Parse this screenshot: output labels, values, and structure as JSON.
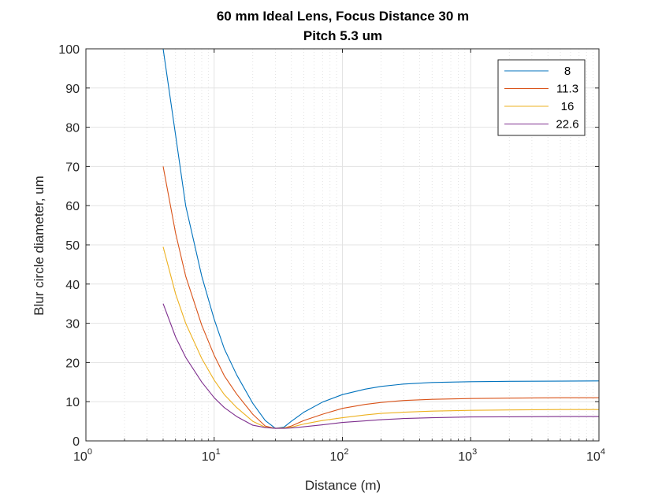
{
  "chart_data": {
    "type": "line",
    "title": "60 mm Ideal Lens, Focus Distance 30 m",
    "subtitle": "Pitch 5.3 um",
    "xlabel": "Distance (m)",
    "ylabel": "Blur circle diameter, um",
    "xscale": "log",
    "xlim": [
      1,
      10000
    ],
    "ylim": [
      0,
      100
    ],
    "x_ticks": [
      {
        "base": "10",
        "exp": "0",
        "value": 1
      },
      {
        "base": "10",
        "exp": "1",
        "value": 10
      },
      {
        "base": "10",
        "exp": "2",
        "value": 100
      },
      {
        "base": "10",
        "exp": "3",
        "value": 1000
      },
      {
        "base": "10",
        "exp": "4",
        "value": 10000
      }
    ],
    "y_ticks": [
      "0",
      "10",
      "20",
      "30",
      "40",
      "50",
      "60",
      "70",
      "80",
      "90",
      "100"
    ],
    "grid": true,
    "minor_grid_x": true,
    "legend_position": "top-right",
    "x": [
      4,
      5,
      6,
      8,
      10,
      12,
      15,
      20,
      25,
      30,
      35,
      40,
      50,
      70,
      100,
      150,
      200,
      300,
      500,
      1000,
      2000,
      5000,
      10000
    ],
    "series": [
      {
        "name": "8",
        "color": "#0072BD",
        "values": [
          101,
          78,
          60,
          42,
          31,
          23.5,
          16.8,
          9.6,
          5.2,
          3.2,
          3.5,
          5,
          7.3,
          9.9,
          11.8,
          13.2,
          13.9,
          14.5,
          14.9,
          15.1,
          15.2,
          15.25,
          15.3
        ]
      },
      {
        "name": "11.3",
        "color": "#D95319",
        "values": [
          70,
          53,
          42,
          29.5,
          21.8,
          16.6,
          11.9,
          6.8,
          3.8,
          3.2,
          3.3,
          3.8,
          5.2,
          6.8,
          8.3,
          9.3,
          9.8,
          10.3,
          10.6,
          10.8,
          10.9,
          11,
          11
        ]
      },
      {
        "name": "16",
        "color": "#EDB120",
        "values": [
          49.5,
          37.5,
          30,
          21,
          15.5,
          11.8,
          8.5,
          5,
          3.5,
          3.2,
          3.3,
          3.5,
          4.3,
          5.2,
          5.9,
          6.6,
          7,
          7.3,
          7.6,
          7.8,
          7.9,
          8,
          8
        ]
      },
      {
        "name": "22.6",
        "color": "#7E2F8E",
        "values": [
          35,
          26.5,
          21.3,
          15,
          11,
          8.5,
          6.2,
          4,
          3.4,
          3.2,
          3.2,
          3.3,
          3.6,
          4.1,
          4.7,
          5.1,
          5.4,
          5.7,
          5.9,
          6.1,
          6.15,
          6.2,
          6.2
        ]
      }
    ]
  }
}
